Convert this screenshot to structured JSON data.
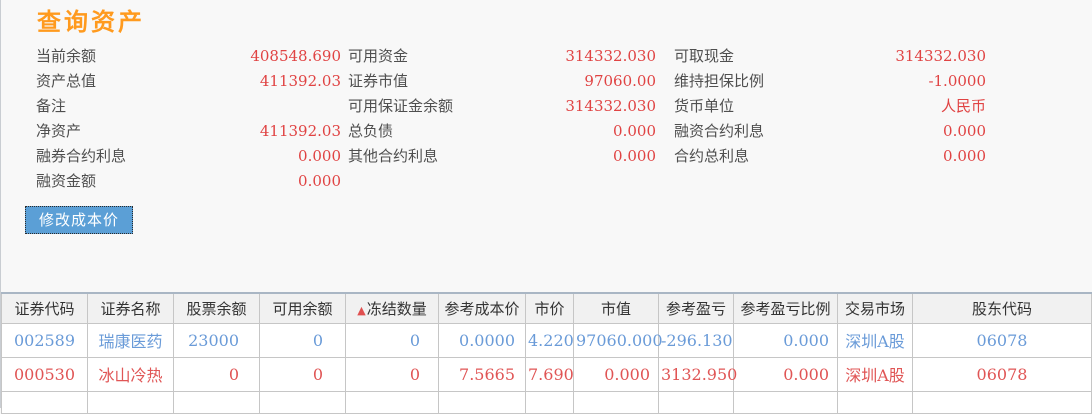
{
  "title": "查询资产",
  "colors": {
    "title": "#ff9a1e",
    "value_red": "#e04343",
    "row_blue": "#6a9bd8",
    "row_red": "#e05555",
    "button_bg": "#5b9fd6",
    "sort_icon": "#e05050"
  },
  "summary": {
    "rows": [
      {
        "cells": [
          {
            "label": "当前余额",
            "value": "408548.690"
          },
          {
            "label": "可用资金",
            "value": "314332.030"
          },
          {
            "label": "可取现金",
            "value": "314332.030"
          }
        ]
      },
      {
        "cells": [
          {
            "label": "资产总值",
            "value": "411392.03"
          },
          {
            "label": "证券市值",
            "value": "97060.00"
          },
          {
            "label": "维持担保比例",
            "value": "-1.0000"
          }
        ]
      },
      {
        "cells": [
          {
            "label": "备注",
            "value": ""
          },
          {
            "label": "可用保证金余额",
            "value": "314332.030"
          },
          {
            "label": "货币单位",
            "value": "人民币"
          }
        ]
      },
      {
        "cells": [
          {
            "label": "净资产",
            "value": "411392.03"
          },
          {
            "label": "总负债",
            "value": "0.000"
          },
          {
            "label": "融资合约利息",
            "value": "0.000"
          }
        ]
      },
      {
        "cells": [
          {
            "label": "融券合约利息",
            "value": "0.000"
          },
          {
            "label": "其他合约利息",
            "value": "0.000"
          },
          {
            "label": "合约总利息",
            "value": "0.000"
          }
        ]
      },
      {
        "cells": [
          {
            "label": "融资金额",
            "value": "0.000"
          },
          {
            "label": "",
            "value": ""
          },
          {
            "label": "",
            "value": ""
          }
        ]
      }
    ]
  },
  "button": {
    "label": "修改成本价"
  },
  "table": {
    "sort_icon": "▲",
    "columns": [
      {
        "key": "security-code",
        "label": "证券代码",
        "sorted": false
      },
      {
        "key": "security-name",
        "label": "证券名称",
        "sorted": false
      },
      {
        "key": "stock-balance",
        "label": "股票余额",
        "sorted": false
      },
      {
        "key": "available-balance",
        "label": "可用余额",
        "sorted": false
      },
      {
        "key": "frozen-qty",
        "label": "冻结数量",
        "sorted": true
      },
      {
        "key": "ref-cost-price",
        "label": "参考成本价",
        "sorted": false
      },
      {
        "key": "market-price",
        "label": "市价",
        "sorted": false
      },
      {
        "key": "market-value",
        "label": "市值",
        "sorted": false
      },
      {
        "key": "ref-profit-loss",
        "label": "参考盈亏",
        "sorted": false
      },
      {
        "key": "ref-pl-ratio",
        "label": "参考盈亏比例",
        "sorted": false
      },
      {
        "key": "trading-market",
        "label": "交易市场",
        "sorted": false
      },
      {
        "key": "shareholder-code",
        "label": "股东代码",
        "sorted": false
      }
    ],
    "rows": [
      {
        "color": "blue",
        "values": [
          "002589",
          "瑞康医药",
          "23000",
          "0",
          "0",
          "0.0000",
          "4.220",
          "97060.000",
          "-296.130",
          "0.000",
          "深圳A股",
          "06078"
        ]
      },
      {
        "color": "red",
        "values": [
          "000530",
          "冰山冷热",
          "0",
          "0",
          "0",
          "7.5665",
          "7.690",
          "0.000",
          "3132.950",
          "0.000",
          "深圳A股",
          "06078"
        ]
      }
    ]
  }
}
